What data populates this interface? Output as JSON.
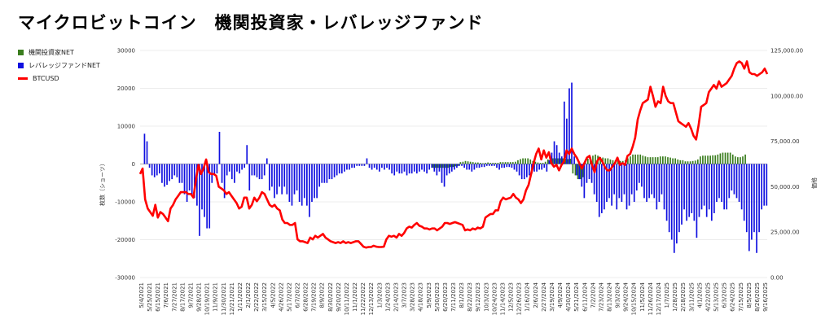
{
  "title": "マイクロビットコイン　機関投資家・レバレッジファンド",
  "chart_data": {
    "type": "bar",
    "legend": [
      {
        "name": "機関投資家NET",
        "color": "#3a7d1e",
        "kind": "bar"
      },
      {
        "name": "レバレッジファンドNET",
        "color": "#1010e0",
        "kind": "bar"
      },
      {
        "name": "BTCUSD",
        "color": "#ff0000",
        "kind": "line"
      }
    ],
    "y_left": {
      "label": "枚数（ショーツ）",
      "min": -30000,
      "max": 30000,
      "ticks": [
        "30000",
        "20000",
        "10000",
        "0",
        "-10000",
        "-20000",
        "-30000"
      ]
    },
    "y_right": {
      "label": "価格",
      "min": 0,
      "max": 125000,
      "ticks": [
        "125,000.00",
        "100,000.00",
        "75,000.00",
        "50,000.00",
        "25,000.00",
        "0.00"
      ]
    },
    "x_labels": [
      "5/4/2021",
      "5/25/2021",
      "6/15/2021",
      "7/6/2021",
      "7/27/2021",
      "8/17/2021",
      "9/7/2021",
      "9/28/2021",
      "10/19/2021",
      "11/9/2021",
      "11/30/2021",
      "12/21/2021",
      "1/11/2022",
      "2/1/2022",
      "2/22/2022",
      "3/15/2022",
      "4/5/2022",
      "4/26/2022",
      "5/17/2022",
      "6/7/2022",
      "6/28/2022",
      "7/19/2022",
      "8/9/2022",
      "8/30/2022",
      "9/20/2022",
      "10/11/2022",
      "11/1/2022",
      "11/22/2022",
      "12/13/2022",
      "1/3/2023",
      "1/24/2023",
      "2/14/2023",
      "3/7/2023",
      "3/28/2023",
      "4/18/2023",
      "5/9/2023",
      "5/30/2023",
      "6/20/2023",
      "7/11/2023",
      "8/1/2023",
      "8/22/2023",
      "9/12/2023",
      "10/3/2023",
      "10/24/2023",
      "11/14/2023",
      "12/5/2023",
      "12/26/2023",
      "1/16/2024",
      "2/6/2024",
      "2/27/2024",
      "3/19/2024",
      "4/9/2024",
      "4/30/2024",
      "5/21/2024",
      "6/11/2024",
      "7/2/2024",
      "7/23/2024",
      "8/13/2024",
      "9/3/2024",
      "9/24/2024",
      "10/15/2024",
      "11/5/2024",
      "11/26/2024",
      "12/17/2024",
      "1/7/2025",
      "1/28/2025",
      "2/18/2025",
      "3/11/2025",
      "4/1/2025",
      "4/22/2025",
      "5/13/2025",
      "6/3/2025",
      "6/24/2025",
      "7/15/2025",
      "8/5/2025",
      "8/26/2025",
      "9/16/2025"
    ],
    "series": [
      {
        "name": "機関投資家NET",
        "values": [
          0,
          0,
          0,
          0,
          0,
          0,
          0,
          0,
          0,
          0,
          0,
          0,
          0,
          0,
          0,
          0,
          0,
          0,
          0,
          0,
          0,
          0,
          0,
          0,
          0,
          0,
          0,
          0,
          0,
          0,
          0,
          0,
          0,
          0,
          0,
          0,
          0,
          0,
          0,
          0,
          0,
          0,
          0,
          0,
          0,
          0,
          0,
          0,
          0,
          0,
          0,
          0,
          0,
          0,
          0,
          0,
          0,
          0,
          0,
          0,
          0,
          0,
          0,
          0,
          0,
          0,
          0,
          0,
          0,
          0,
          0,
          0,
          0,
          0,
          0,
          0,
          0,
          0,
          0,
          0,
          0,
          0,
          0,
          0,
          0,
          0,
          0,
          0,
          0,
          0,
          0,
          0,
          0,
          0,
          0,
          0,
          0,
          0,
          0,
          0,
          0,
          0,
          0,
          0,
          0,
          0,
          0,
          0,
          0,
          0,
          0,
          0,
          0,
          0,
          0,
          0,
          0,
          -1000,
          -1000,
          -1000,
          -1000,
          -1000,
          -1000,
          -1000,
          -800,
          -800,
          -600,
          -500,
          500,
          600,
          800,
          700,
          600,
          500,
          400,
          400,
          300,
          200,
          300,
          400,
          300,
          300,
          300,
          300,
          500,
          500,
          500,
          500,
          500,
          500,
          600,
          1000,
          1300,
          1500,
          1500,
          1500,
          1200,
          800,
          600,
          400,
          300,
          300,
          600,
          1200,
          1500,
          1500,
          1500,
          1500,
          1500,
          1500,
          1400,
          1300,
          1400,
          -2500,
          -3000,
          -4000,
          -4000,
          -3500,
          800,
          1400,
          1800,
          2200,
          2500,
          2200,
          1800,
          1700,
          1500,
          1500,
          1200,
          1000,
          900,
          800,
          800,
          800,
          1000,
          1500,
          2000,
          2500,
          2500,
          2500,
          2500,
          2200,
          2000,
          1800,
          1800,
          1800,
          1800,
          1800,
          2000,
          2000,
          2000,
          1800,
          1700,
          1500,
          1500,
          1200,
          1000,
          1000,
          700,
          700,
          700,
          800,
          900,
          1200,
          2000,
          2200,
          2200,
          2200,
          2200,
          2300,
          2300,
          2500,
          2800,
          3000,
          3000,
          3000,
          3000,
          2500,
          2000,
          1800,
          1800,
          2000,
          2500
        ]
      },
      {
        "name": "レバレッジファンドNET",
        "values": [
          0,
          8000,
          6000,
          -1000,
          -3000,
          -3500,
          -3000,
          -2500,
          -5000,
          -6000,
          -5500,
          -4500,
          -4000,
          -3000,
          -3500,
          -5000,
          -5000,
          -8000,
          -10000,
          -7000,
          -8000,
          -9000,
          -11000,
          -19000,
          -12000,
          -14000,
          -17000,
          -17000,
          -5000,
          -3000,
          -2500,
          8500,
          -5000,
          -9000,
          -3000,
          -2000,
          -4000,
          -5000,
          -2000,
          -2500,
          -1500,
          -1000,
          5000,
          -7000,
          -3000,
          -3000,
          -3500,
          -4000,
          -4000,
          -3000,
          1500,
          -7000,
          -6000,
          -9000,
          -8000,
          -6000,
          -8000,
          -6000,
          -8000,
          -10000,
          -11000,
          -8000,
          -7000,
          -10000,
          -11000,
          -9000,
          -11000,
          -14000,
          -10000,
          -9000,
          -9000,
          -6000,
          -5000,
          -5000,
          -5000,
          -4000,
          -4000,
          -3500,
          -3000,
          -2500,
          -2500,
          -2000,
          -1500,
          -1500,
          -1000,
          -1000,
          -500,
          -500,
          -500,
          -500,
          1500,
          -1000,
          -1500,
          -1000,
          -1500,
          -2000,
          -1000,
          -1500,
          -1000,
          -1500,
          -2500,
          -3000,
          -2000,
          -2500,
          -2500,
          -2000,
          -3000,
          -2500,
          -2500,
          -2000,
          -2500,
          -2000,
          -1500,
          -2000,
          -2500,
          -1500,
          -1000,
          -2000,
          -3000,
          -2000,
          -5000,
          -6000,
          -3000,
          -2500,
          -2000,
          -1500,
          -1000,
          -500,
          -500,
          -1000,
          -1500,
          -1500,
          -2000,
          -1500,
          -1000,
          -1000,
          -800,
          -800,
          -500,
          -500,
          -500,
          -500,
          -1000,
          -1500,
          -1000,
          -1000,
          -800,
          -800,
          -1000,
          -1500,
          -2000,
          -3000,
          -4000,
          -4000,
          -3500,
          -3000,
          -2500,
          -2000,
          -2000,
          -1500,
          -1500,
          -1000,
          -2000,
          1000,
          3000,
          6000,
          5000,
          3000,
          2000,
          16500,
          12000,
          20000,
          21500,
          2000,
          -3000,
          -4000,
          -6000,
          -9000,
          -5000,
          -4000,
          -5000,
          -8000,
          -10000,
          -14000,
          -13000,
          -12000,
          -10000,
          -9000,
          -11000,
          -8000,
          -12000,
          -9000,
          -10000,
          -8000,
          -12000,
          -11000,
          -8000,
          -10000,
          -7000,
          -5000,
          -6000,
          -9000,
          -10000,
          -9000,
          -8000,
          -9000,
          -12000,
          -10000,
          -8000,
          -12000,
          -15000,
          -18000,
          -20000,
          -23500,
          -21000,
          -18000,
          -16000,
          -12000,
          -15000,
          -14000,
          -13000,
          -15000,
          -19500,
          -14000,
          -12000,
          -11000,
          -14000,
          -12000,
          -15000,
          -13000,
          -10000,
          -9000,
          -10000,
          -12000,
          -12000,
          -9000,
          -7000,
          -8000,
          -9000,
          -10000,
          -12000,
          -15000,
          -18000,
          -23000,
          -20000,
          -18000,
          -23500,
          -18000,
          -12000,
          -11000,
          -11000
        ]
      },
      {
        "name": "BTCUSD",
        "values": [
          57000,
          60000,
          43000,
          38000,
          36000,
          34000,
          40000,
          33000,
          36000,
          35000,
          33000,
          31000,
          38000,
          40000,
          43000,
          45000,
          47000,
          47000,
          47000,
          46000,
          46000,
          44000,
          54000,
          62000,
          57000,
          60000,
          65000,
          58000,
          57000,
          57000,
          56000,
          50000,
          49000,
          48000,
          46000,
          47000,
          45000,
          43000,
          41000,
          38000,
          39000,
          44000,
          44000,
          38000,
          40000,
          44000,
          42000,
          44000,
          47000,
          46000,
          43000,
          40000,
          39000,
          40000,
          38000,
          37000,
          32000,
          30000,
          30000,
          29000,
          29000,
          30000,
          21000,
          20000,
          20000,
          19500,
          19000,
          22000,
          21000,
          23000,
          22000,
          23000,
          24000,
          22000,
          21000,
          20000,
          19500,
          19000,
          19500,
          19000,
          20000,
          19000,
          19500,
          19000,
          19500,
          20000,
          20000,
          18500,
          17000,
          16500,
          16800,
          16800,
          17500,
          17000,
          16800,
          16800,
          17000,
          21000,
          23000,
          22500,
          23000,
          22000,
          24000,
          23000,
          24500,
          27000,
          28000,
          27500,
          29000,
          30000,
          28500,
          28000,
          27000,
          27000,
          26500,
          27000,
          27000,
          26000,
          27000,
          28000,
          30000,
          30000,
          29500,
          30000,
          30500,
          30000,
          29500,
          29000,
          26000,
          26500,
          26000,
          27000,
          26500,
          27500,
          27000,
          28000,
          33000,
          34000,
          35000,
          35000,
          37000,
          37000,
          42000,
          44000,
          43000,
          43500,
          44000,
          46000,
          44000,
          43000,
          41000,
          43000,
          48000,
          51000,
          57000,
          63000,
          68000,
          71000,
          65000,
          70000,
          66000,
          69000,
          63000,
          61000,
          62000,
          59000,
          62000,
          64000,
          70000,
          68000,
          71000,
          68000,
          66000,
          63000,
          60000,
          63000,
          66000,
          67000,
          62000,
          58000,
          64000,
          66000,
          64000,
          61000,
          59000,
          59000,
          61000,
          63000,
          66000,
          62000,
          63000,
          62000,
          67000,
          68000,
          72000,
          77000,
          87000,
          92000,
          96000,
          97000,
          98000,
          105000,
          100000,
          94000,
          97000,
          96000,
          105000,
          100000,
          97000,
          96000,
          96000,
          91000,
          86000,
          85000,
          84000,
          83000,
          85000,
          82000,
          78000,
          76000,
          84000,
          94000,
          95000,
          96000,
          102000,
          104000,
          106000,
          104000,
          108000,
          105000,
          106000,
          107000,
          109000,
          111000,
          115000,
          118000,
          119000,
          118000,
          115000,
          119000,
          113000,
          112000,
          112000,
          111000,
          112000,
          113000,
          115000,
          112000
        ]
      }
    ]
  }
}
